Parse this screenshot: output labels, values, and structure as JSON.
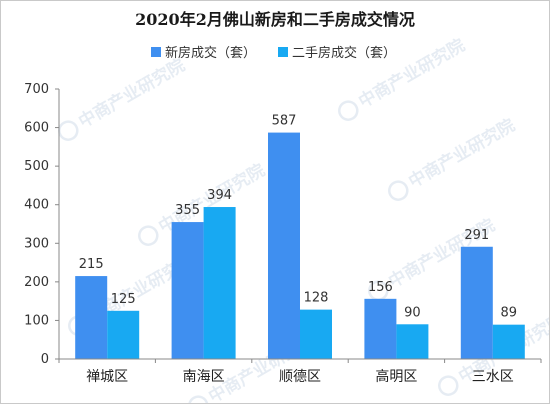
{
  "chart_data": {
    "type": "bar",
    "title": "2020年2月佛山新房和二手房成交情况",
    "categories": [
      "禅城区",
      "南海区",
      "顺德区",
      "高明区",
      "三水区"
    ],
    "series": [
      {
        "name": "新房成交（套）",
        "values": [
          215,
          355,
          587,
          156,
          291
        ],
        "color": "#3f8ff0"
      },
      {
        "name": "二手房成交（套）",
        "values": [
          125,
          394,
          128,
          90,
          89
        ],
        "color": "#18a9f2"
      }
    ],
    "ylim": [
      0,
      700
    ],
    "yticks": [
      0,
      100,
      200,
      300,
      400,
      500,
      600,
      700
    ],
    "xlabel": "",
    "ylabel": "",
    "legend_position": "top",
    "grid": false
  },
  "watermark": "中商产业研究院"
}
